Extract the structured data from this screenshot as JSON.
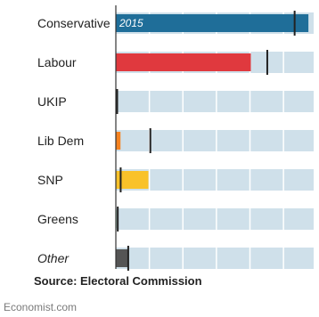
{
  "chart_data": {
    "type": "bar",
    "orientation": "horizontal",
    "categories": [
      "Conservative",
      "Labour",
      "UKIP",
      "Lib Dem",
      "SNP",
      "Greens",
      "Other"
    ],
    "category_styles": [
      "normal",
      "normal",
      "normal",
      "normal",
      "normal",
      "normal",
      "italic"
    ],
    "series": [
      {
        "values": [
          331,
          232,
          1,
          8,
          56,
          1,
          22
        ]
      },
      {
        "marker": "bar-tick",
        "values": [
          305,
          258,
          0,
          57,
          6,
          1,
          19
        ]
      }
    ],
    "bar_colors": [
      "#1f6e99",
      "#e0393e",
      "#8b2b8f",
      "#f58220",
      "#f9c22a",
      "#4caf50",
      "#555555"
    ],
    "inline_label": {
      "category": "Conservative",
      "text": "2015"
    },
    "xlim": [
      0,
      340
    ],
    "grid": true,
    "row_stripe_color": "#cfe0ea",
    "source": "Source: Electoral Commission",
    "brand": "Economist.com"
  }
}
